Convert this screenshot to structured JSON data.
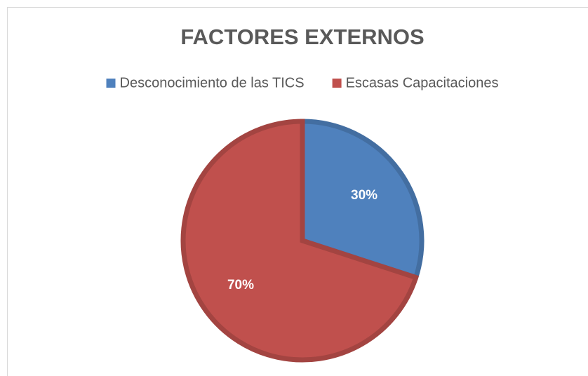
{
  "chart_data": {
    "type": "pie",
    "title": "FACTORES EXTERNOS",
    "categories": [
      "Desconocimiento de las TICS",
      "Escasas Capacitaciones"
    ],
    "values": [
      30,
      70
    ],
    "value_labels": [
      "30%",
      "70%"
    ],
    "colors": [
      "#4f81bd",
      "#c0504d"
    ],
    "legend": "top"
  }
}
